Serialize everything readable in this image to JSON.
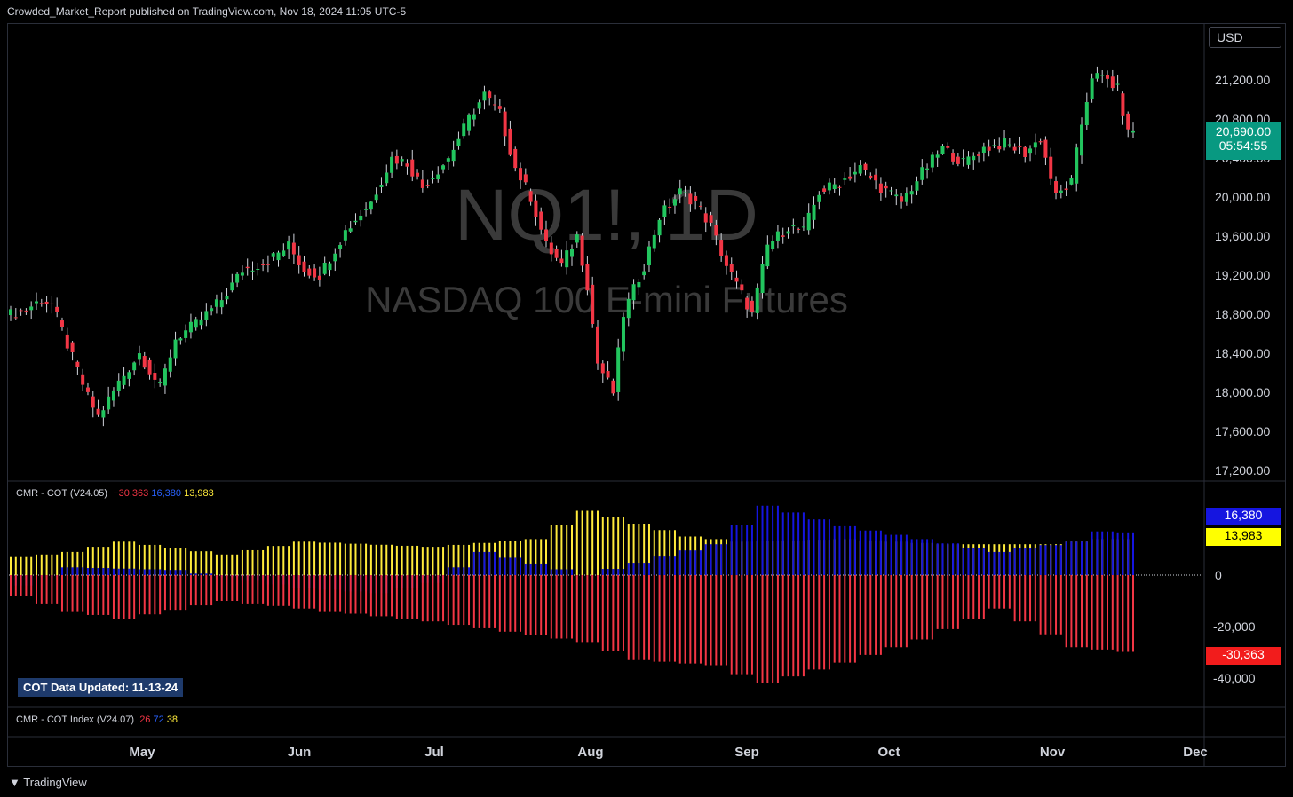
{
  "header": {
    "publisher": "Crowded_Market_Report published on TradingView.com, Nov 18, 2024 11:05 UTC-5"
  },
  "currency": "USD",
  "watermark": {
    "symbol": "NQ1!, 1D",
    "name": "NASDAQ 100 E-mini Futures"
  },
  "last_price": {
    "value": "20,690.00",
    "countdown": "05:54:55"
  },
  "indicators": {
    "cot": {
      "label": "CMR - COT (V24.05)",
      "v1": "−30,363",
      "v2": "16,380",
      "v3": "13,983"
    },
    "cot_index": {
      "label": "CMR - COT Index (V24.07)",
      "v1": "26",
      "v2": "72",
      "v3": "38"
    },
    "updated": "COT Data Updated:  11-13-24",
    "tags": {
      "blue": "16,380",
      "yellow": "13,983",
      "red": "-30,363"
    }
  },
  "footer": {
    "brand": "TradingView"
  },
  "colors": {
    "up": "#22c55e",
    "down": "#f23645",
    "blue": "#1515e0",
    "yellow": "#ffeb3b",
    "grid": "#2a2e39"
  },
  "chart_data": [
    {
      "type": "candlestick",
      "price_axis": {
        "ylim": [
          17200,
          21400
        ],
        "ticks": [
          "21,200.00",
          "20,800.00",
          "20,400.00",
          "20,000.00",
          "19,600.00",
          "19,200.00",
          "18,800.00",
          "18,400.00",
          "18,000.00",
          "17,600.00",
          "17,200.00"
        ]
      },
      "time_axis": {
        "ticks": [
          "May",
          "Jun",
          "Jul",
          "Aug",
          "Sep",
          "Oct",
          "Nov",
          "Dec"
        ]
      },
      "anchors": [
        {
          "i": 0,
          "c": 18800
        },
        {
          "i": 3,
          "c": 18850
        },
        {
          "i": 6,
          "c": 18950
        },
        {
          "i": 8,
          "c": 18900
        },
        {
          "i": 12,
          "c": 18350
        },
        {
          "i": 15,
          "c": 17950
        },
        {
          "i": 17,
          "c": 17750
        },
        {
          "i": 21,
          "c": 18100
        },
        {
          "i": 25,
          "c": 18400
        },
        {
          "i": 29,
          "c": 18050
        },
        {
          "i": 32,
          "c": 18550
        },
        {
          "i": 36,
          "c": 18700
        },
        {
          "i": 41,
          "c": 18950
        },
        {
          "i": 45,
          "c": 19250
        },
        {
          "i": 50,
          "c": 19350
        },
        {
          "i": 54,
          "c": 19500
        },
        {
          "i": 57,
          "c": 19250
        },
        {
          "i": 60,
          "c": 19200
        },
        {
          "i": 65,
          "c": 19650
        },
        {
          "i": 70,
          "c": 19950
        },
        {
          "i": 74,
          "c": 20400
        },
        {
          "i": 77,
          "c": 20350
        },
        {
          "i": 80,
          "c": 20100
        },
        {
          "i": 85,
          "c": 20400
        },
        {
          "i": 89,
          "c": 20800
        },
        {
          "i": 92,
          "c": 21050
        },
        {
          "i": 95,
          "c": 20850
        },
        {
          "i": 98,
          "c": 20300
        },
        {
          "i": 101,
          "c": 20000
        },
        {
          "i": 104,
          "c": 19500
        },
        {
          "i": 107,
          "c": 19300
        },
        {
          "i": 110,
          "c": 19600
        },
        {
          "i": 112,
          "c": 19100
        },
        {
          "i": 114,
          "c": 18300
        },
        {
          "i": 117,
          "c": 18000
        },
        {
          "i": 119,
          "c": 18800
        },
        {
          "i": 123,
          "c": 19300
        },
        {
          "i": 126,
          "c": 19800
        },
        {
          "i": 130,
          "c": 20050
        },
        {
          "i": 133,
          "c": 19950
        },
        {
          "i": 136,
          "c": 19700
        },
        {
          "i": 139,
          "c": 19300
        },
        {
          "i": 142,
          "c": 19000
        },
        {
          "i": 144,
          "c": 18800
        },
        {
          "i": 147,
          "c": 19500
        },
        {
          "i": 151,
          "c": 19700
        },
        {
          "i": 154,
          "c": 19650
        },
        {
          "i": 157,
          "c": 20050
        },
        {
          "i": 161,
          "c": 20150
        },
        {
          "i": 165,
          "c": 20300
        },
        {
          "i": 169,
          "c": 20100
        },
        {
          "i": 173,
          "c": 19950
        },
        {
          "i": 177,
          "c": 20250
        },
        {
          "i": 181,
          "c": 20500
        },
        {
          "i": 185,
          "c": 20350
        },
        {
          "i": 189,
          "c": 20500
        },
        {
          "i": 193,
          "c": 20550
        },
        {
          "i": 197,
          "c": 20450
        },
        {
          "i": 200,
          "c": 20600
        },
        {
          "i": 203,
          "c": 20000
        },
        {
          "i": 206,
          "c": 20150
        },
        {
          "i": 208,
          "c": 20750
        },
        {
          "i": 210,
          "c": 21250
        },
        {
          "i": 213,
          "c": 21200
        },
        {
          "i": 215,
          "c": 21100
        },
        {
          "i": 217,
          "c": 20650
        },
        {
          "i": 218,
          "c": 20690
        }
      ],
      "count": 219
    },
    {
      "type": "bar",
      "title": "CMR - COT (V24.05)",
      "ylim": [
        -50000,
        30000
      ],
      "y_ticks": [
        "0",
        "-20,000",
        "-40,000"
      ],
      "series": [
        {
          "name": "yellow",
          "color": "#ffeb3b",
          "anchors": [
            {
              "i": 0,
              "v": 7000
            },
            {
              "i": 10,
              "v": 9000
            },
            {
              "i": 20,
              "v": 13000
            },
            {
              "i": 40,
              "v": 8000
            },
            {
              "i": 55,
              "v": 13000
            },
            {
              "i": 80,
              "v": 11000
            },
            {
              "i": 100,
              "v": 14000
            },
            {
              "i": 110,
              "v": 25000
            },
            {
              "i": 120,
              "v": 20000
            },
            {
              "i": 130,
              "v": 15000
            },
            {
              "i": 140,
              "v": 13000
            },
            {
              "i": 160,
              "v": 14000
            },
            {
              "i": 180,
              "v": 12000
            },
            {
              "i": 200,
              "v": 12000
            },
            {
              "i": 210,
              "v": 14000
            },
            {
              "i": 218,
              "v": 13983
            }
          ]
        },
        {
          "name": "blue",
          "color": "#1515e0",
          "anchors": [
            {
              "i": 0,
              "v": -4000
            },
            {
              "i": 10,
              "v": 3000
            },
            {
              "i": 30,
              "v": 2000
            },
            {
              "i": 55,
              "v": -5000
            },
            {
              "i": 70,
              "v": -7000
            },
            {
              "i": 80,
              "v": -3000
            },
            {
              "i": 90,
              "v": 9000
            },
            {
              "i": 110,
              "v": 0
            },
            {
              "i": 135,
              "v": 12000
            },
            {
              "i": 145,
              "v": 27000
            },
            {
              "i": 160,
              "v": 19000
            },
            {
              "i": 175,
              "v": 14000
            },
            {
              "i": 190,
              "v": 9000
            },
            {
              "i": 205,
              "v": 13000
            },
            {
              "i": 210,
              "v": 17000
            },
            {
              "i": 218,
              "v": 16380
            }
          ]
        },
        {
          "name": "red",
          "color": "#f23645",
          "anchors": [
            {
              "i": 0,
              "v": -8000
            },
            {
              "i": 10,
              "v": -14000
            },
            {
              "i": 20,
              "v": -17000
            },
            {
              "i": 40,
              "v": -10000
            },
            {
              "i": 55,
              "v": -13000
            },
            {
              "i": 80,
              "v": -18000
            },
            {
              "i": 95,
              "v": -22000
            },
            {
              "i": 110,
              "v": -26000
            },
            {
              "i": 120,
              "v": -33000
            },
            {
              "i": 135,
              "v": -35000
            },
            {
              "i": 145,
              "v": -42000
            },
            {
              "i": 160,
              "v": -34000
            },
            {
              "i": 175,
              "v": -25000
            },
            {
              "i": 190,
              "v": -13000
            },
            {
              "i": 205,
              "v": -28000
            },
            {
              "i": 218,
              "v": -30363
            }
          ]
        }
      ]
    }
  ]
}
